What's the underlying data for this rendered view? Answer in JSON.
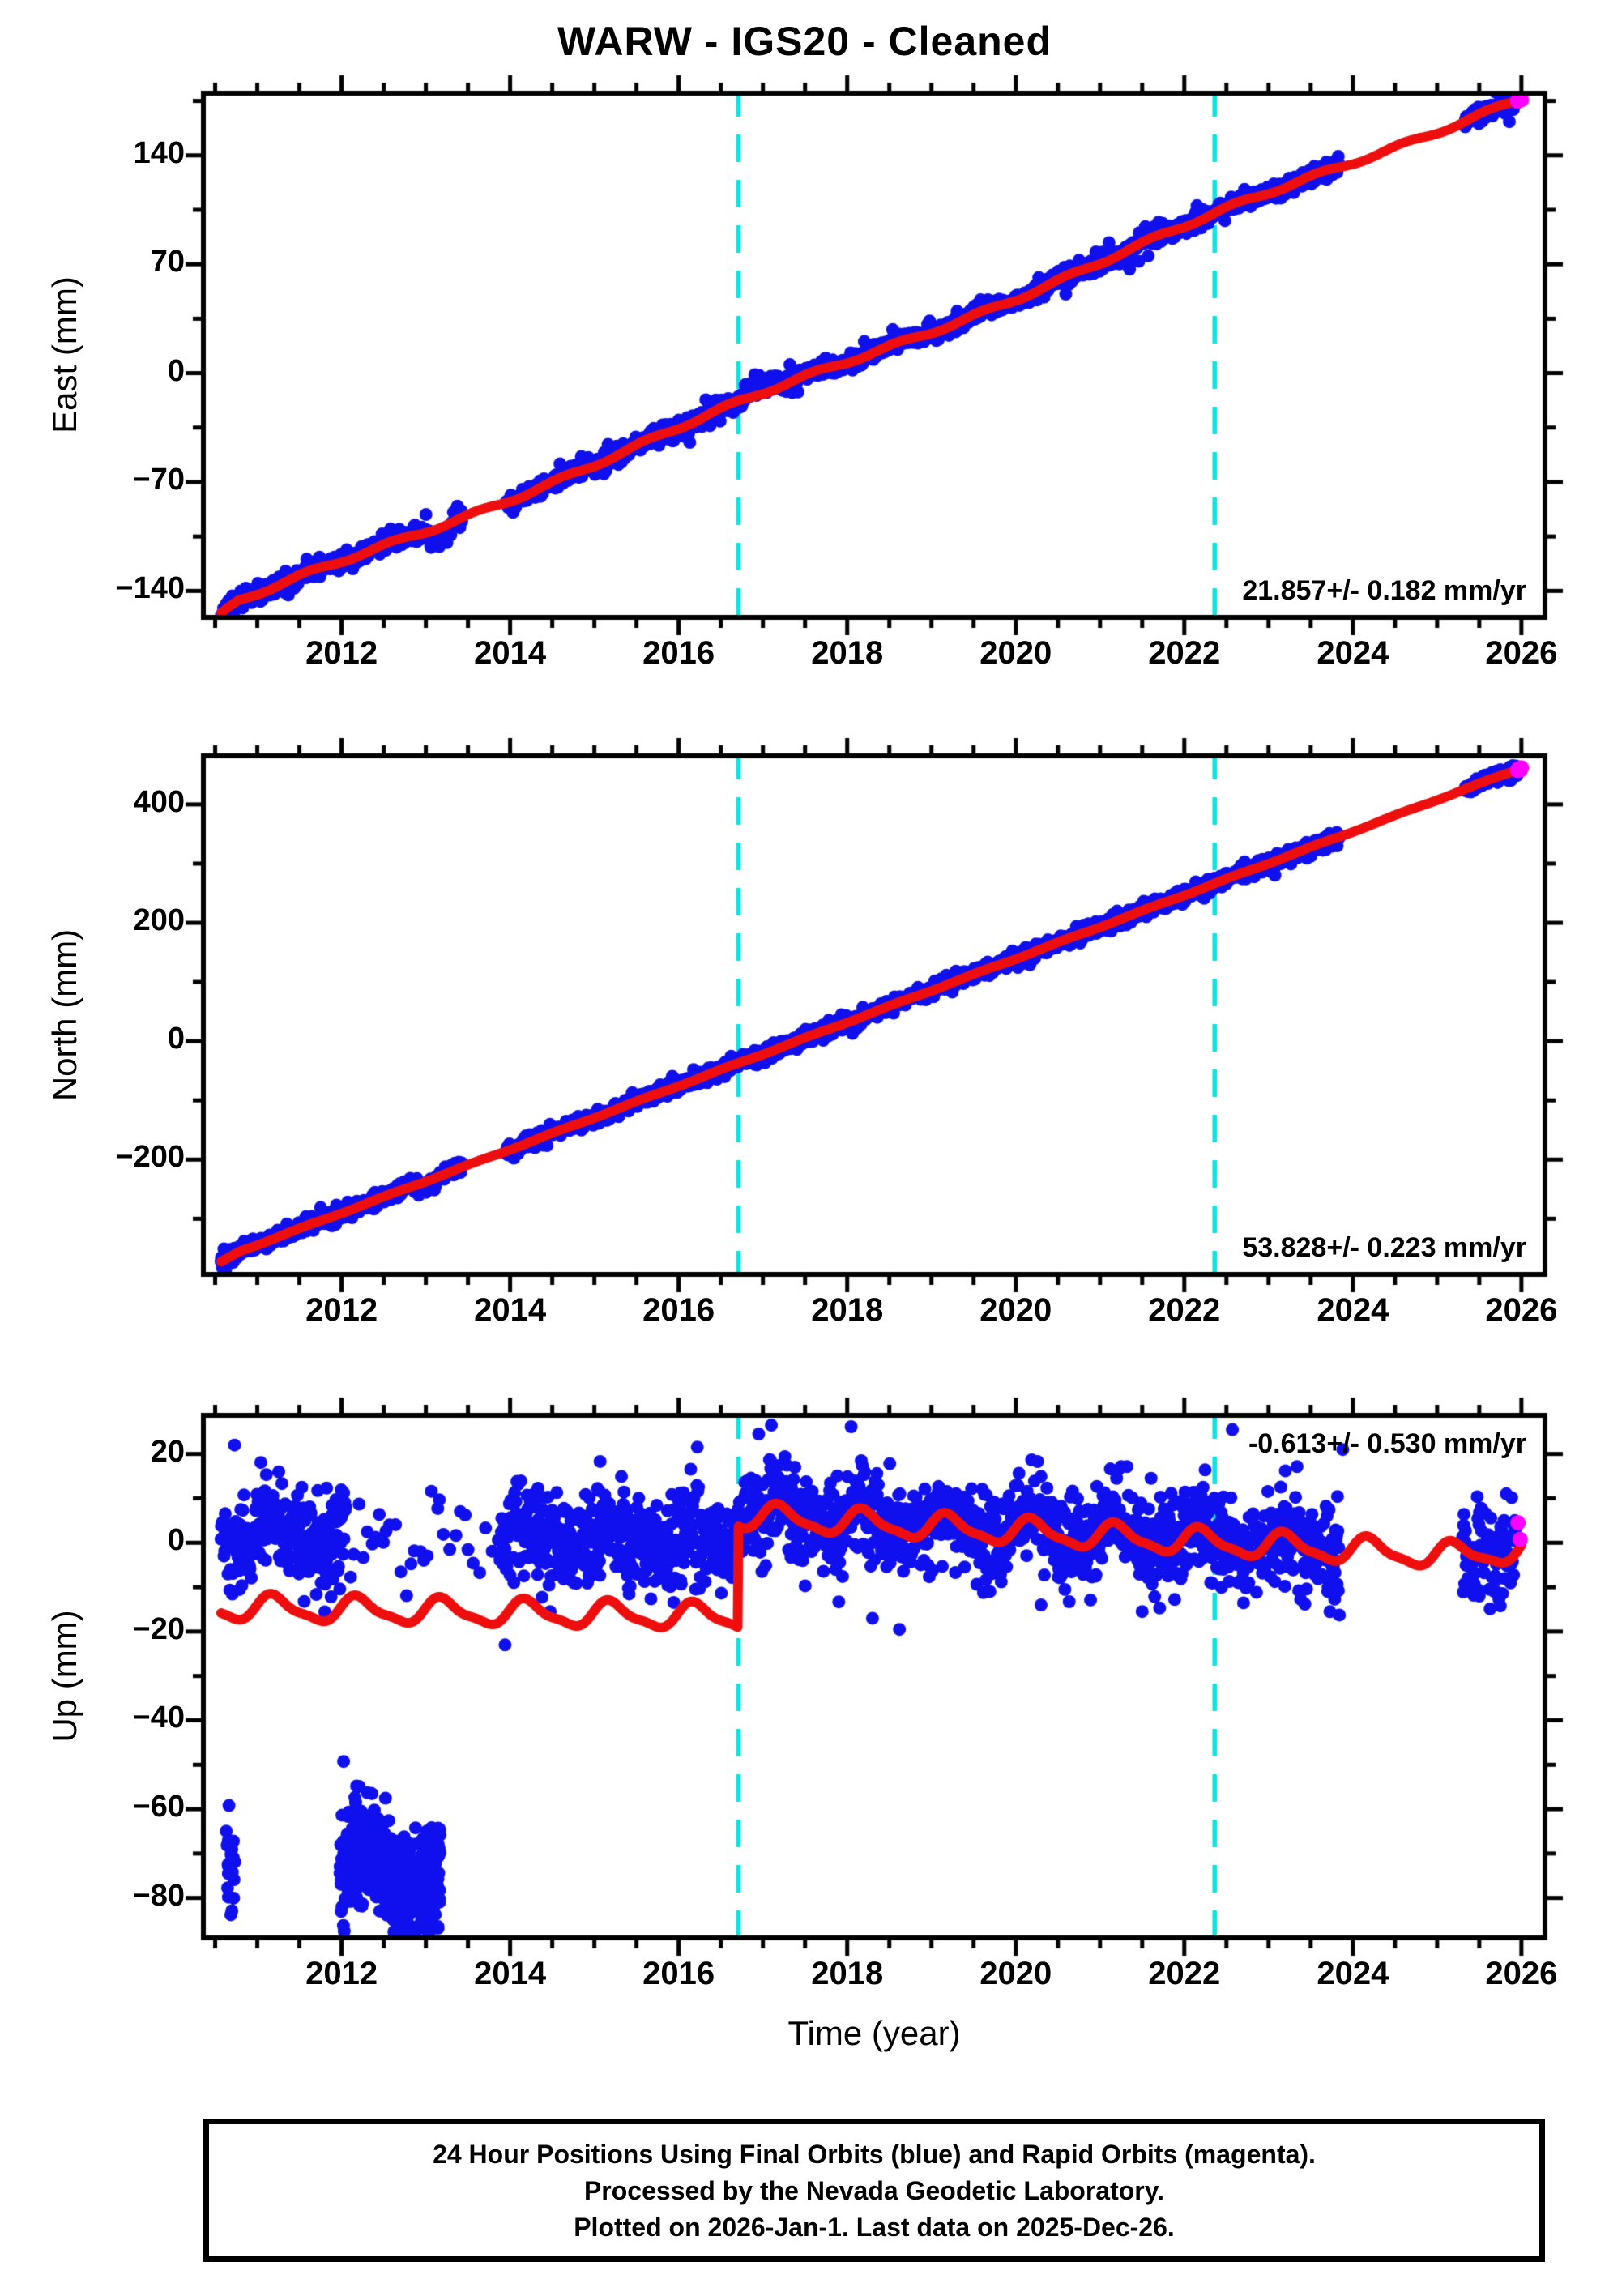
{
  "title": "WARW  - IGS20 - Cleaned",
  "colors": {
    "final_orbits_blue": "#1010ee",
    "rapid_orbits_magenta": "#ff00ff",
    "model_red": "#ee0e0e",
    "event_cyan": "#00e8e8",
    "axis_black": "#000000",
    "background": "#ffffff"
  },
  "legend": {
    "blue_series": "Final Orbits",
    "magenta_series": "Rapid Orbits"
  },
  "xaxis": {
    "label": "Time (year)",
    "min": 2010.36,
    "max": 2026.28,
    "major_ticks": [
      2012,
      2014,
      2016,
      2018,
      2020,
      2022,
      2024,
      2026
    ],
    "minor_step": 0.5
  },
  "events": [
    2016.71,
    2022.36
  ],
  "caption": {
    "lines": [
      "24 Hour Positions Using Final Orbits (blue) and Rapid Orbits (magenta).",
      "Processed by the Nevada Geodetic Laboratory.",
      "Plotted on 2026-Jan-1. Last data on 2025-Dec-26."
    ]
  },
  "chart_data": [
    {
      "type": "scatter",
      "component": "East",
      "ylabel": "East (mm)",
      "ymin": -157,
      "ymax": 180,
      "ymajor_step": 70,
      "yminor_step": 35,
      "yticks": [
        {
          "v": 140,
          "label": "140"
        },
        {
          "v": 70,
          "label": "70"
        },
        {
          "v": 0,
          "label": "0"
        },
        {
          "v": -70,
          "label": "−70"
        },
        {
          "v": -140,
          "label": "−140"
        }
      ],
      "rate_label": "21.857+/- 0.182 mm/yr",
      "rate_mm_per_yr": 21.857,
      "rate_sigma": 0.182,
      "seed": 11,
      "model": {
        "type": "linear",
        "t_start": 2010.57,
        "t_end": 2026.0,
        "ref_t": 2010.57,
        "ref_value": -153,
        "slope": 21.5,
        "seasonal_amp": 1.3,
        "seasonal_phase": 0.35,
        "longwave_amp": 2.4,
        "longwave_period": 5.6,
        "longwave_phase": 0.8,
        "hook_t": 2010.78,
        "hook_rate": 20
      },
      "scatter": {
        "sigma": 2.4,
        "step": 0.006,
        "segments": [
          [
            2010.57,
            2013.43
          ],
          [
            2013.95,
            2023.85
          ],
          [
            2025.33,
            2025.952
          ]
        ]
      },
      "anomalies": [
        {
          "t0": 2016.78,
          "t1": 2017.2,
          "dv": 6
        },
        {
          "t0": 2013.05,
          "t1": 2013.3,
          "dv": -5
        }
      ],
      "outlier_clusters": [],
      "extra_outliers": [],
      "rapid": {
        "t0": 2025.955,
        "t1": 2026.0,
        "count": 5
      }
    },
    {
      "type": "scatter",
      "component": "North",
      "ylabel": "North (mm)",
      "ymin": -394,
      "ymax": 482,
      "ymajor_step": 200,
      "yminor_step": 100,
      "yticks": [
        {
          "v": 400,
          "label": "400"
        },
        {
          "v": 200,
          "label": "200"
        },
        {
          "v": 0,
          "label": "0"
        },
        {
          "v": -200,
          "label": "−200"
        }
      ],
      "rate_label": "53.828+/- 0.223 mm/yr",
      "rate_mm_per_yr": 53.828,
      "rate_sigma": 0.223,
      "seed": 22,
      "model": {
        "type": "linear",
        "t_start": 2010.57,
        "t_end": 2026.0,
        "ref_t": 2010.57,
        "ref_value": -367,
        "slope": 53.7,
        "seasonal_amp": 0.9,
        "seasonal_phase": 0.3,
        "longwave_amp": 0,
        "longwave_period": 5,
        "longwave_phase": 0,
        "hook_t": 2010.8,
        "hook_rate": 28
      },
      "scatter": {
        "sigma": 6.0,
        "step": 0.006,
        "segments": [
          [
            2010.57,
            2013.43
          ],
          [
            2013.95,
            2023.85
          ],
          [
            2025.33,
            2025.952
          ]
        ]
      },
      "anomalies": [
        {
          "t0": 2012.9,
          "t1": 2013.12,
          "dv": -9
        }
      ],
      "outlier_clusters": [],
      "extra_outliers": [],
      "rapid": {
        "t0": 2025.955,
        "t1": 2026.0,
        "count": 5
      }
    },
    {
      "type": "scatter",
      "component": "Up",
      "ylabel": "Up (mm)",
      "ymin": -89,
      "ymax": 28.7,
      "ymajor_step": 20,
      "yminor_step": 10,
      "yticks": [
        {
          "v": 20,
          "label": "20"
        },
        {
          "v": 0,
          "label": "0"
        },
        {
          "v": -20,
          "label": "−20"
        },
        {
          "v": -40,
          "label": "−40"
        },
        {
          "v": -60,
          "label": "−60"
        },
        {
          "v": -80,
          "label": "−80"
        }
      ],
      "rate_label": "-0.613+/- 0.530 mm/yr",
      "rate_mm_per_yr": -0.613,
      "rate_sigma": 0.53,
      "seed": 33,
      "model": {
        "type": "step",
        "t_start": 2010.57,
        "t_end": 2026.0,
        "ref_t": 2010.57,
        "pre_value": -14.6,
        "pre_slope": -0.35,
        "step_t": 2016.7,
        "post_value": 6.0,
        "post_slope": -1.05,
        "seasonal_amp": 2.7,
        "seasonal_phase": 0.95,
        "semi_amp": 0.8,
        "recover_t": 2025.25,
        "recover_rate": 3.2
      },
      "scatter": {
        "sigma": 5.0,
        "step": 0.006,
        "offset_pre": 17.0,
        "offset_post": 0.5,
        "segments": [
          [
            2010.57,
            2012.05
          ],
          [
            2013.88,
            2023.84
          ],
          [
            2025.3,
            2025.952
          ]
        ],
        "sparse_segments": [
          [
            2012.05,
            2013.16,
            0.055
          ],
          [
            2013.16,
            2013.88,
            0.06
          ]
        ]
      },
      "anomalies": [],
      "outlier_clusters": [
        {
          "t0": 2010.63,
          "t1": 2010.74,
          "mean": -72,
          "sigma": 6,
          "count": 26,
          "wave_amp": 0,
          "wave_period": 1
        },
        {
          "t0": 2011.98,
          "t1": 2013.17,
          "mean": -74,
          "sigma": 6.5,
          "count": 430,
          "wave_amp": 6,
          "wave_period": 1.15
        }
      ],
      "extra_outliers": [
        [
          2013.94,
          -23
        ],
        [
          2018.3,
          -17
        ],
        [
          2018.62,
          -19.5
        ],
        [
          2016.95,
          24.5
        ],
        [
          2017.1,
          26.5
        ],
        [
          2022.57,
          25.5
        ],
        [
          2010.73,
          22
        ],
        [
          2023.88,
          21
        ],
        [
          2021.5,
          -15.5
        ],
        [
          2025.5,
          -12
        ],
        [
          2020.3,
          -14
        ]
      ],
      "rapid": {
        "values": [
          [
            2025.96,
            4.5
          ],
          [
            2025.985,
            0.8
          ]
        ]
      }
    }
  ]
}
